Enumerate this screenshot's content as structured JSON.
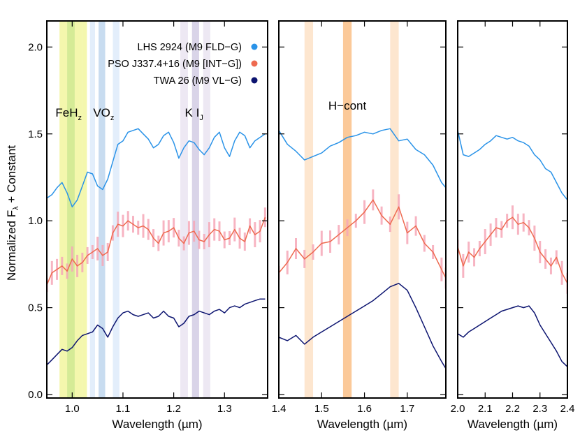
{
  "chart_data": {
    "type": "line",
    "ylabel": "Normalized F",
    "ylabel_sub": "λ",
    "ylabel_tail": " + Constant",
    "ylim": [
      -0.02,
      2.15
    ],
    "yticks": [
      "0.0",
      "0.5",
      "1.0",
      "1.5",
      "2.0"
    ],
    "yticks_values": [
      0.0,
      0.5,
      1.0,
      1.5,
      2.0
    ],
    "legend_placement": "top-right of first panel",
    "legend": [
      {
        "label": "LHS 2924 (M9 FLD−G)",
        "color": "#2a93e8"
      },
      {
        "label": "PSO J337.4+16 (M9 [INT−G])",
        "color": "#ee6a50"
      },
      {
        "label": "TWA 26 (M9 VL−G)",
        "color": "#0c1470"
      }
    ],
    "series_colors": {
      "lhs": "#2a93e8",
      "pso": "#ee6a50",
      "pso_err": "#f6a8b8",
      "twa": "#0c1470"
    },
    "panels": [
      {
        "id": "J",
        "xlabel": "Wavelength (µm)",
        "xlim": [
          0.95,
          1.385
        ],
        "xticks": [
          "1.0",
          "1.1",
          "1.2",
          "1.3"
        ],
        "xticks_values": [
          1.0,
          1.1,
          1.2,
          1.3
        ],
        "bands": [
          {
            "range": [
              0.975,
              0.99
            ],
            "color": "#f4f7ad"
          },
          {
            "range": [
              0.99,
              1.005
            ],
            "color": "#d5eb96"
          },
          {
            "range": [
              1.005,
              1.019
            ],
            "color": "#f4f7ad"
          },
          {
            "range": [
              1.019,
              1.029
            ],
            "color": "#f4f7ad"
          },
          {
            "range": [
              1.035,
              1.045
            ],
            "color": "#e3eefb"
          },
          {
            "range": [
              1.052,
              1.065
            ],
            "color": "#c8dcf0"
          },
          {
            "range": [
              1.08,
              1.093
            ],
            "color": "#e3eefb"
          },
          {
            "range": [
              1.213,
              1.228
            ],
            "color": "#ede8f3"
          },
          {
            "range": [
              1.236,
              1.25
            ],
            "color": "#d9d4e8"
          },
          {
            "range": [
              1.258,
              1.272
            ],
            "color": "#ede8f3"
          }
        ],
        "labels": [
          {
            "id": "feh",
            "main": "FeH",
            "sub": "z",
            "x": 0.993,
            "y": 1.6
          },
          {
            "id": "vo",
            "main": "VO",
            "sub": "z",
            "x": 1.062,
            "y": 1.6
          },
          {
            "id": "ki",
            "main": "K I",
            "sub": "J",
            "x": 1.24,
            "y": 1.6
          }
        ],
        "series": [
          {
            "key": "lhs",
            "x": [
              0.95,
              0.96,
              0.97,
              0.98,
              0.99,
              1.0,
              1.01,
              1.02,
              1.03,
              1.04,
              1.05,
              1.06,
              1.07,
              1.08,
              1.09,
              1.1,
              1.11,
              1.12,
              1.13,
              1.14,
              1.15,
              1.16,
              1.17,
              1.18,
              1.19,
              1.2,
              1.21,
              1.22,
              1.23,
              1.24,
              1.25,
              1.26,
              1.27,
              1.28,
              1.29,
              1.3,
              1.31,
              1.32,
              1.33,
              1.34,
              1.35,
              1.36,
              1.37,
              1.38
            ],
            "y": [
              1.13,
              1.15,
              1.19,
              1.22,
              1.16,
              1.08,
              1.12,
              1.2,
              1.28,
              1.27,
              1.2,
              1.18,
              1.24,
              1.34,
              1.44,
              1.46,
              1.51,
              1.52,
              1.53,
              1.5,
              1.47,
              1.42,
              1.44,
              1.49,
              1.51,
              1.45,
              1.36,
              1.42,
              1.46,
              1.45,
              1.41,
              1.38,
              1.42,
              1.48,
              1.51,
              1.42,
              1.37,
              1.46,
              1.51,
              1.49,
              1.42,
              1.46,
              1.48,
              1.5
            ]
          },
          {
            "key": "pso",
            "x": [
              0.95,
              0.96,
              0.97,
              0.98,
              0.99,
              1.0,
              1.01,
              1.02,
              1.03,
              1.04,
              1.05,
              1.06,
              1.07,
              1.08,
              1.09,
              1.1,
              1.11,
              1.12,
              1.13,
              1.14,
              1.15,
              1.16,
              1.17,
              1.18,
              1.19,
              1.2,
              1.21,
              1.22,
              1.23,
              1.24,
              1.25,
              1.26,
              1.27,
              1.28,
              1.29,
              1.3,
              1.31,
              1.32,
              1.33,
              1.34,
              1.35,
              1.36,
              1.37,
              1.38
            ],
            "y": [
              0.63,
              0.7,
              0.72,
              0.74,
              0.71,
              0.78,
              0.74,
              0.76,
              0.8,
              0.82,
              0.84,
              0.8,
              0.82,
              0.93,
              0.98,
              0.97,
              1.0,
              0.98,
              0.96,
              0.97,
              0.95,
              0.9,
              0.87,
              0.93,
              0.94,
              0.96,
              0.9,
              0.87,
              0.93,
              0.94,
              0.89,
              0.88,
              0.92,
              0.95,
              0.94,
              0.89,
              0.9,
              0.95,
              0.9,
              0.88,
              0.97,
              0.92,
              0.94,
              1.02
            ]
          },
          {
            "key": "twa",
            "x": [
              0.95,
              0.96,
              0.97,
              0.98,
              0.99,
              1.0,
              1.01,
              1.02,
              1.03,
              1.04,
              1.05,
              1.06,
              1.07,
              1.08,
              1.09,
              1.1,
              1.11,
              1.12,
              1.13,
              1.14,
              1.15,
              1.16,
              1.17,
              1.18,
              1.19,
              1.2,
              1.21,
              1.22,
              1.23,
              1.24,
              1.25,
              1.26,
              1.27,
              1.28,
              1.29,
              1.3,
              1.31,
              1.32,
              1.33,
              1.34,
              1.35,
              1.36,
              1.37,
              1.38
            ],
            "y": [
              0.17,
              0.2,
              0.23,
              0.26,
              0.25,
              0.27,
              0.31,
              0.34,
              0.35,
              0.36,
              0.4,
              0.38,
              0.33,
              0.39,
              0.44,
              0.47,
              0.48,
              0.46,
              0.45,
              0.46,
              0.47,
              0.44,
              0.45,
              0.48,
              0.45,
              0.44,
              0.39,
              0.41,
              0.45,
              0.46,
              0.48,
              0.47,
              0.46,
              0.48,
              0.49,
              0.47,
              0.5,
              0.51,
              0.5,
              0.52,
              0.53,
              0.54,
              0.55,
              0.55
            ]
          }
        ]
      },
      {
        "id": "H",
        "xlabel": "Wavelength (µm)",
        "xlim": [
          1.4,
          1.79
        ],
        "xticks": [
          "1.4",
          "1.5",
          "1.6",
          "1.7"
        ],
        "xticks_values": [
          1.4,
          1.5,
          1.6,
          1.7
        ],
        "bands": [
          {
            "range": [
              1.46,
              1.48
            ],
            "color": "#fde6cf"
          },
          {
            "range": [
              1.55,
              1.57
            ],
            "color": "#fbc999"
          },
          {
            "range": [
              1.66,
              1.68
            ],
            "color": "#fde6cf"
          }
        ],
        "labels": [
          {
            "id": "hcont",
            "main": "H−cont",
            "sub": "",
            "x": 1.56,
            "y": 1.64
          }
        ],
        "series": [
          {
            "key": "lhs",
            "x": [
              1.4,
              1.42,
              1.44,
              1.46,
              1.48,
              1.5,
              1.52,
              1.54,
              1.56,
              1.58,
              1.6,
              1.62,
              1.64,
              1.66,
              1.68,
              1.7,
              1.72,
              1.74,
              1.76,
              1.78,
              1.79
            ],
            "y": [
              1.52,
              1.44,
              1.4,
              1.35,
              1.37,
              1.39,
              1.43,
              1.45,
              1.48,
              1.49,
              1.51,
              1.5,
              1.52,
              1.53,
              1.46,
              1.47,
              1.41,
              1.38,
              1.32,
              1.22,
              1.19
            ]
          },
          {
            "key": "pso",
            "x": [
              1.4,
              1.42,
              1.44,
              1.46,
              1.48,
              1.5,
              1.52,
              1.54,
              1.56,
              1.58,
              1.6,
              1.62,
              1.64,
              1.66,
              1.68,
              1.7,
              1.72,
              1.74,
              1.76,
              1.78,
              1.79
            ],
            "y": [
              0.7,
              0.76,
              0.84,
              0.78,
              0.82,
              0.87,
              0.88,
              0.92,
              0.96,
              1.0,
              1.05,
              1.12,
              1.03,
              0.98,
              1.08,
              0.93,
              0.97,
              0.87,
              0.82,
              0.72,
              0.67
            ]
          },
          {
            "key": "twa",
            "x": [
              1.4,
              1.42,
              1.44,
              1.46,
              1.48,
              1.5,
              1.52,
              1.54,
              1.56,
              1.58,
              1.6,
              1.62,
              1.64,
              1.66,
              1.68,
              1.7,
              1.72,
              1.74,
              1.76,
              1.78,
              1.79
            ],
            "y": [
              0.33,
              0.31,
              0.34,
              0.29,
              0.33,
              0.36,
              0.39,
              0.42,
              0.45,
              0.48,
              0.51,
              0.54,
              0.58,
              0.62,
              0.64,
              0.6,
              0.5,
              0.39,
              0.28,
              0.19,
              0.15
            ]
          }
        ]
      },
      {
        "id": "K",
        "xlabel": "Wavelength (µm)",
        "xlim": [
          2.0,
          2.4
        ],
        "xticks": [
          "2.0",
          "2.1",
          "2.2",
          "2.3",
          "2.4"
        ],
        "xticks_values": [
          2.0,
          2.1,
          2.2,
          2.3,
          2.4
        ],
        "bands": [],
        "labels": [],
        "series": [
          {
            "key": "lhs",
            "x": [
              2.0,
              2.02,
              2.04,
              2.06,
              2.08,
              2.1,
              2.12,
              2.14,
              2.16,
              2.18,
              2.2,
              2.22,
              2.24,
              2.26,
              2.28,
              2.3,
              2.32,
              2.34,
              2.36,
              2.38,
              2.4
            ],
            "y": [
              1.52,
              1.38,
              1.37,
              1.39,
              1.41,
              1.44,
              1.46,
              1.49,
              1.48,
              1.47,
              1.48,
              1.46,
              1.45,
              1.43,
              1.38,
              1.35,
              1.3,
              1.28,
              1.22,
              1.16,
              1.12
            ]
          },
          {
            "key": "pso",
            "x": [
              2.0,
              2.02,
              2.04,
              2.06,
              2.08,
              2.1,
              2.12,
              2.14,
              2.16,
              2.18,
              2.2,
              2.22,
              2.24,
              2.26,
              2.28,
              2.3,
              2.32,
              2.34,
              2.36,
              2.38,
              2.4
            ],
            "y": [
              0.85,
              0.74,
              0.82,
              0.79,
              0.84,
              0.88,
              0.92,
              0.96,
              0.95,
              1.0,
              1.02,
              0.98,
              0.99,
              0.96,
              0.9,
              0.82,
              0.78,
              0.74,
              0.79,
              0.7,
              0.64
            ]
          },
          {
            "key": "twa",
            "x": [
              2.0,
              2.02,
              2.04,
              2.06,
              2.08,
              2.1,
              2.12,
              2.14,
              2.16,
              2.18,
              2.2,
              2.22,
              2.24,
              2.26,
              2.28,
              2.3,
              2.32,
              2.34,
              2.36,
              2.38,
              2.4
            ],
            "y": [
              0.35,
              0.33,
              0.36,
              0.38,
              0.4,
              0.42,
              0.44,
              0.46,
              0.48,
              0.49,
              0.5,
              0.51,
              0.5,
              0.51,
              0.47,
              0.4,
              0.35,
              0.3,
              0.25,
              0.19,
              0.16
            ]
          }
        ]
      }
    ]
  }
}
